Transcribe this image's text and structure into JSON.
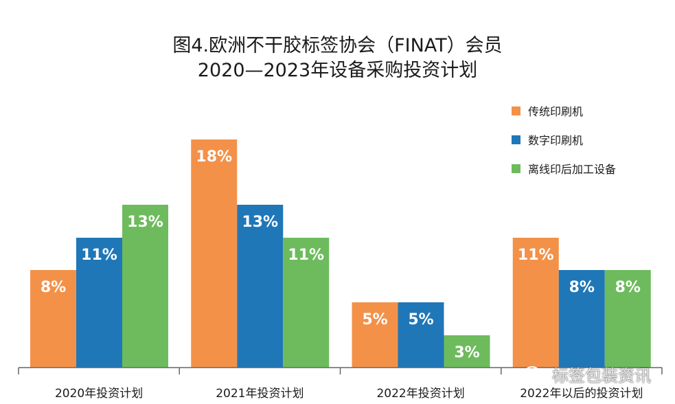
{
  "chart_data": {
    "type": "bar",
    "title": "图4.欧洲不干胶标签协会（FINAT）会员",
    "subtitle": "2020—2023年设备采购投资计划",
    "categories": [
      "2020年投资计划",
      "2021年投资计划",
      "2022年投资计划",
      "2022年以后的投资计划"
    ],
    "series": [
      {
        "name": "传统印刷机",
        "color": "#f39149",
        "values": [
          8,
          18,
          5,
          11
        ],
        "labels": [
          "8%",
          "18%",
          "5%",
          "11%"
        ]
      },
      {
        "name": "数字印刷机",
        "color": "#1f77b8",
        "values": [
          11,
          13,
          5,
          8
        ],
        "labels": [
          "11%",
          "13%",
          "5%",
          "8%"
        ]
      },
      {
        "name": "离线印后加工设备",
        "color": "#6dbb5d",
        "values": [
          13,
          11,
          3,
          8
        ],
        "labels": [
          "13%",
          "11%",
          "3%",
          "8%"
        ]
      }
    ],
    "unit": "%",
    "xlabel": "",
    "ylabel": "",
    "grid": false,
    "legend_position": "top-right"
  },
  "watermark": "标签包装资讯"
}
